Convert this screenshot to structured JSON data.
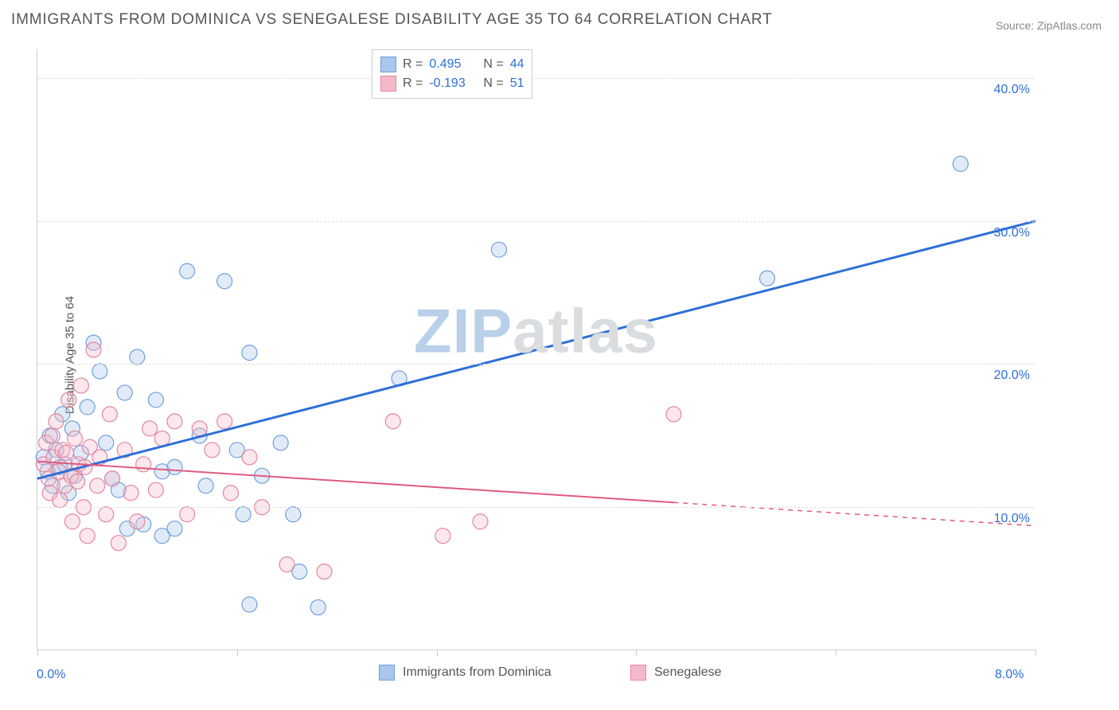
{
  "title": "IMMIGRANTS FROM DOMINICA VS SENEGALESE DISABILITY AGE 35 TO 64 CORRELATION CHART",
  "source": "Source: ZipAtlas.com",
  "ylabel": "Disability Age 35 to 64",
  "watermark": {
    "part1": "ZIP",
    "part2": "atlas",
    "color1": "#b9cfea",
    "color2": "#dadde0"
  },
  "chart": {
    "type": "scatter-with-regression",
    "background_color": "#ffffff",
    "grid_color": "#e0e0e0",
    "axis_color": "#cccccc",
    "xlim": [
      0,
      8
    ],
    "ylim": [
      0,
      42
    ],
    "xticks": [
      0,
      8
    ],
    "yticks": [
      10,
      20,
      30,
      40
    ],
    "x_tick_positions_minor": [
      0,
      1.6,
      3.2,
      4.8,
      6.4,
      8.0
    ],
    "xtick_label_color": "#2e6fd8",
    "ytick_label_color": "#2e6fd8",
    "tick_fontsize": 16,
    "marker_radius": 9.5,
    "series": [
      {
        "name": "Immigrants from Dominica",
        "color_fill": "#a9c6ec",
        "color_stroke": "#6fa0dc",
        "R": "0.495",
        "N": "44",
        "regression": {
          "x0": 0.0,
          "y0": 12.0,
          "x1": 8.0,
          "y1": 30.0,
          "solid_until_x": 8.0,
          "color": "#2e6fd8",
          "width": 3
        },
        "points": [
          [
            0.05,
            13.5
          ],
          [
            0.08,
            12.5
          ],
          [
            0.1,
            15.0
          ],
          [
            0.12,
            11.5
          ],
          [
            0.15,
            14.0
          ],
          [
            0.18,
            12.8
          ],
          [
            0.2,
            16.5
          ],
          [
            0.22,
            13.0
          ],
          [
            0.25,
            11.0
          ],
          [
            0.28,
            15.5
          ],
          [
            0.3,
            12.2
          ],
          [
            0.35,
            13.8
          ],
          [
            0.4,
            17.0
          ],
          [
            0.45,
            21.5
          ],
          [
            0.5,
            19.5
          ],
          [
            0.55,
            14.5
          ],
          [
            0.6,
            12.0
          ],
          [
            0.65,
            11.2
          ],
          [
            0.7,
            18.0
          ],
          [
            0.72,
            8.5
          ],
          [
            0.8,
            20.5
          ],
          [
            0.85,
            8.8
          ],
          [
            0.95,
            17.5
          ],
          [
            1.0,
            12.5
          ],
          [
            1.1,
            12.8
          ],
          [
            1.1,
            8.5
          ],
          [
            1.2,
            26.5
          ],
          [
            1.3,
            15.0
          ],
          [
            1.35,
            11.5
          ],
          [
            1.5,
            25.8
          ],
          [
            1.6,
            14.0
          ],
          [
            1.65,
            9.5
          ],
          [
            1.7,
            20.8
          ],
          [
            1.7,
            3.2
          ],
          [
            1.8,
            12.2
          ],
          [
            1.95,
            14.5
          ],
          [
            2.05,
            9.5
          ],
          [
            2.1,
            5.5
          ],
          [
            2.25,
            3.0
          ],
          [
            2.9,
            19.0
          ],
          [
            3.7,
            28.0
          ],
          [
            5.85,
            26.0
          ],
          [
            7.4,
            34.0
          ],
          [
            1.0,
            8.0
          ]
        ]
      },
      {
        "name": "Senegalese",
        "color_fill": "#f3b9c9",
        "color_stroke": "#e487a1",
        "R": "-0.193",
        "N": "51",
        "regression": {
          "x0": 0.0,
          "y0": 13.2,
          "x1": 8.0,
          "y1": 8.7,
          "solid_until_x": 5.1,
          "color": "#e05a7f",
          "width": 2
        },
        "points": [
          [
            0.05,
            13.0
          ],
          [
            0.07,
            14.5
          ],
          [
            0.09,
            12.0
          ],
          [
            0.1,
            11.0
          ],
          [
            0.12,
            15.0
          ],
          [
            0.13,
            13.5
          ],
          [
            0.15,
            16.0
          ],
          [
            0.17,
            12.5
          ],
          [
            0.18,
            10.5
          ],
          [
            0.2,
            14.0
          ],
          [
            0.22,
            11.5
          ],
          [
            0.23,
            13.8
          ],
          [
            0.25,
            17.5
          ],
          [
            0.27,
            12.2
          ],
          [
            0.28,
            9.0
          ],
          [
            0.3,
            14.8
          ],
          [
            0.32,
            11.8
          ],
          [
            0.33,
            13.0
          ],
          [
            0.35,
            18.5
          ],
          [
            0.37,
            10.0
          ],
          [
            0.38,
            12.8
          ],
          [
            0.4,
            8.0
          ],
          [
            0.42,
            14.2
          ],
          [
            0.45,
            21.0
          ],
          [
            0.48,
            11.5
          ],
          [
            0.5,
            13.5
          ],
          [
            0.55,
            9.5
          ],
          [
            0.58,
            16.5
          ],
          [
            0.6,
            12.0
          ],
          [
            0.65,
            7.5
          ],
          [
            0.7,
            14.0
          ],
          [
            0.75,
            11.0
          ],
          [
            0.8,
            9.0
          ],
          [
            0.85,
            13.0
          ],
          [
            0.9,
            15.5
          ],
          [
            0.95,
            11.2
          ],
          [
            1.0,
            14.8
          ],
          [
            1.1,
            16.0
          ],
          [
            1.2,
            9.5
          ],
          [
            1.3,
            15.5
          ],
          [
            1.4,
            14.0
          ],
          [
            1.5,
            16.0
          ],
          [
            1.55,
            11.0
          ],
          [
            1.7,
            13.5
          ],
          [
            1.8,
            10.0
          ],
          [
            2.0,
            6.0
          ],
          [
            2.3,
            5.5
          ],
          [
            2.85,
            16.0
          ],
          [
            3.25,
            8.0
          ],
          [
            3.55,
            9.0
          ],
          [
            5.1,
            16.5
          ]
        ]
      }
    ],
    "legend_corr": {
      "R_label": "R =",
      "N_label": "N =",
      "value_color": "#2e6fd8"
    },
    "legend_bottom": [
      {
        "label": "Immigrants from Dominica",
        "fill": "#a9c6ec",
        "stroke": "#6fa0dc"
      },
      {
        "label": "Senegalese",
        "fill": "#f3b9c9",
        "stroke": "#e487a1"
      }
    ]
  }
}
